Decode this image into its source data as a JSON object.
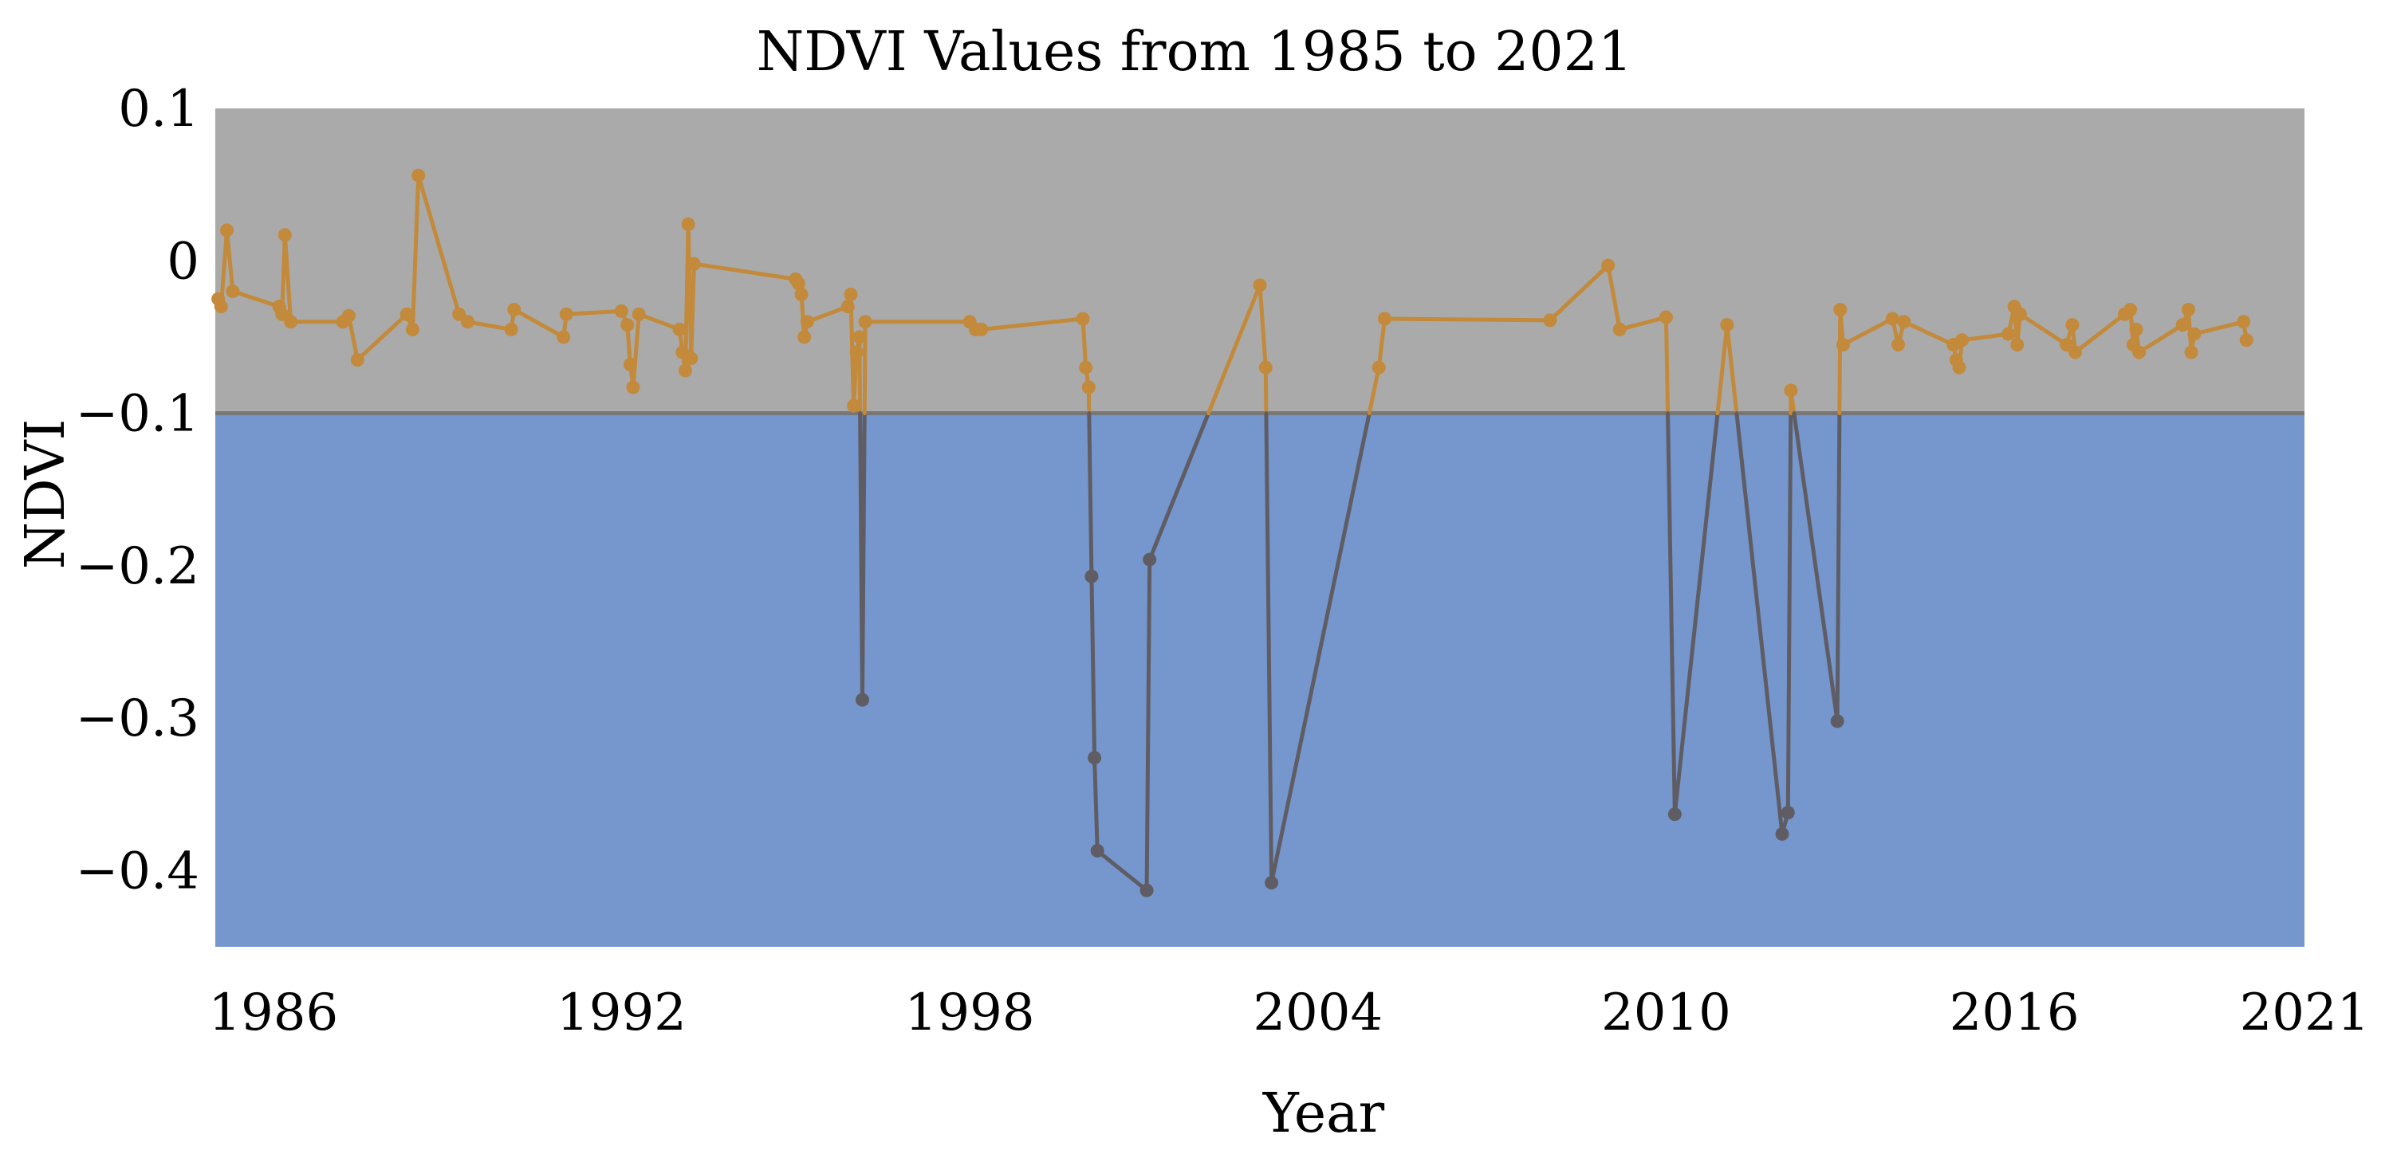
{
  "chart_data": {
    "type": "line",
    "title": "NDVI Values from 1985 to 2021",
    "xlabel": "Year",
    "ylabel": "NDVI",
    "xlim": [
      1985.0,
      2021.0
    ],
    "ylim": [
      -0.45,
      0.1
    ],
    "threshold": -0.1,
    "xticks": [
      1986,
      1992,
      1998,
      2004,
      2010,
      2016,
      2021
    ],
    "xtick_labels": [
      "1986",
      "1992",
      "1998",
      "2004",
      "2010",
      "2016",
      "2021"
    ],
    "yticks": [
      0.1,
      0.0,
      -0.1,
      -0.2,
      -0.3,
      -0.4
    ],
    "ytick_labels": [
      "0.1",
      "0",
      "−0.1",
      "−0.2",
      "−0.3",
      "−0.4"
    ],
    "colors": {
      "above_region": "#aaaaaa",
      "below_region": "#7597cd",
      "threshold_line": "#777777",
      "series_above": "#c28a3a",
      "series_below": "#5f5d63"
    },
    "series": [
      {
        "name": "NDVI",
        "x": [
          1985.05,
          1985.1,
          1985.2,
          1985.3,
          1986.1,
          1986.15,
          1986.2,
          1986.3,
          1987.2,
          1987.3,
          1987.45,
          1988.3,
          1988.4,
          1988.5,
          1989.2,
          1989.35,
          1990.1,
          1990.15,
          1991.0,
          1991.05,
          1992.0,
          1992.1,
          1992.15,
          1992.2,
          1992.3,
          1993.0,
          1993.05,
          1993.1,
          1993.15,
          1993.2,
          1993.25,
          1995.0,
          1995.05,
          1995.1,
          1995.15,
          1995.2,
          1995.9,
          1995.95,
          1996.0,
          1996.05,
          1996.1,
          1996.15,
          1996.2,
          1998.0,
          1998.1,
          1998.2,
          1999.95,
          2000.0,
          2000.05,
          2000.1,
          2000.15,
          2000.2,
          2001.05,
          2001.1,
          2003.0,
          2003.1,
          2003.2,
          2005.05,
          2005.15,
          2008.0,
          2009.0,
          2009.2,
          2010.0,
          2010.15,
          2011.05,
          2012.0,
          2012.1,
          2012.15,
          2012.95,
          2013.0,
          2013.05,
          2013.9,
          2014.0,
          2014.1,
          2014.95,
          2015.0,
          2015.05,
          2015.1,
          2015.9,
          2016.0,
          2016.05,
          2016.1,
          2016.9,
          2017.0,
          2017.05,
          2017.9,
          2018.0,
          2018.05,
          2018.1,
          2018.15,
          2018.9,
          2019.0,
          2019.05,
          2019.1,
          2019.95,
          2020.0
        ],
        "y": [
          -0.025,
          -0.03,
          0.02,
          -0.02,
          -0.03,
          -0.035,
          0.017,
          -0.04,
          -0.04,
          -0.036,
          -0.065,
          -0.035,
          -0.045,
          0.056,
          -0.035,
          -0.04,
          -0.045,
          -0.032,
          -0.05,
          -0.035,
          -0.033,
          -0.042,
          -0.068,
          -0.083,
          -0.035,
          -0.045,
          -0.06,
          -0.072,
          0.024,
          -0.064,
          -0.002,
          -0.012,
          -0.015,
          -0.022,
          -0.05,
          -0.04,
          -0.03,
          -0.022,
          -0.095,
          -0.06,
          -0.05,
          -0.288,
          -0.04,
          -0.04,
          -0.045,
          -0.045,
          -0.038,
          -0.07,
          -0.083,
          -0.207,
          -0.326,
          -0.387,
          -0.413,
          -0.196,
          -0.016,
          -0.07,
          -0.408,
          -0.07,
          -0.038,
          -0.039,
          -0.003,
          -0.045,
          -0.037,
          -0.363,
          -0.042,
          -0.376,
          -0.362,
          -0.085,
          -0.302,
          -0.032,
          -0.055,
          -0.038,
          -0.055,
          -0.04,
          -0.055,
          -0.065,
          -0.07,
          -0.052,
          -0.048,
          -0.03,
          -0.055,
          -0.035,
          -0.055,
          -0.042,
          -0.06,
          -0.035,
          -0.032,
          -0.055,
          -0.045,
          -0.06,
          -0.042,
          -0.032,
          -0.06,
          -0.048,
          -0.04,
          -0.052
        ]
      }
    ]
  }
}
